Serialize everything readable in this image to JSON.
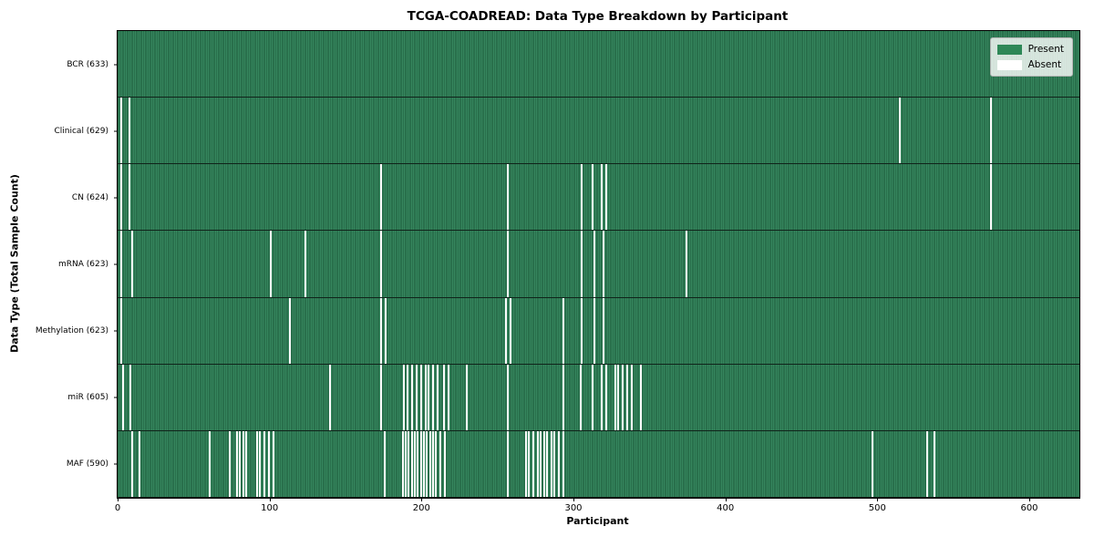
{
  "chart": {
    "title": "TCGA-COADREAD: Data Type Breakdown by Participant",
    "xlabel": "Participant",
    "ylabel": "Data Type (Total Sample Count)"
  },
  "chart_data": {
    "type": "heatmap",
    "title": "TCGA-COADREAD: Data Type Breakdown by Participant",
    "xlabel": "Participant",
    "ylabel": "Data Type (Total Sample Count)",
    "xlim": [
      0,
      633
    ],
    "n_participants": 633,
    "x_ticks": [
      0,
      100,
      200,
      300,
      400,
      500,
      600
    ],
    "grid": false,
    "legend_position": "upper right",
    "legend": [
      {
        "label": "Present",
        "color": "#2e8757"
      },
      {
        "label": "Absent",
        "color": "#ffffff"
      }
    ],
    "colors": {
      "present": "#2e8757",
      "present_edge": "#1d5c3c",
      "absent": "#fcfcfc"
    },
    "rows": [
      {
        "label": "BCR (633)",
        "name": "BCR",
        "total": 633,
        "absent_participants": []
      },
      {
        "label": "Clinical (629)",
        "name": "Clinical",
        "total": 629,
        "absent_participants": [
          2,
          7,
          514,
          574
        ]
      },
      {
        "label": "CN (624)",
        "name": "CN",
        "total": 624,
        "absent_participants": [
          2,
          7,
          173,
          256,
          305,
          312,
          318,
          321,
          574
        ]
      },
      {
        "label": "mRNA (623)",
        "name": "mRNA",
        "total": 623,
        "absent_participants": [
          2,
          9,
          100,
          123,
          173,
          256,
          305,
          313,
          319,
          374
        ]
      },
      {
        "label": "Methylation (623)",
        "name": "Methylation",
        "total": 623,
        "absent_participants": [
          2,
          113,
          173,
          176,
          255,
          258,
          293,
          305,
          313,
          319
        ]
      },
      {
        "label": "miR (605)",
        "name": "miR",
        "total": 605,
        "absent_participants": [
          3,
          8,
          139,
          173,
          188,
          190,
          193,
          196,
          199,
          202,
          204,
          207,
          210,
          214,
          217,
          229,
          256,
          293,
          304,
          312,
          318,
          321,
          327,
          329,
          332,
          335,
          338,
          344
        ]
      },
      {
        "label": "MAF (590)",
        "name": "MAF",
        "total": 590,
        "absent_participants": [
          9,
          14,
          60,
          73,
          78,
          80,
          82,
          84,
          91,
          93,
          96,
          99,
          102,
          175,
          187,
          189,
          191,
          193,
          195,
          197,
          199,
          201,
          203,
          205,
          207,
          209,
          212,
          215,
          256,
          268,
          270,
          273,
          276,
          278,
          280,
          282,
          285,
          287,
          290,
          293,
          496,
          532,
          537
        ]
      }
    ]
  }
}
